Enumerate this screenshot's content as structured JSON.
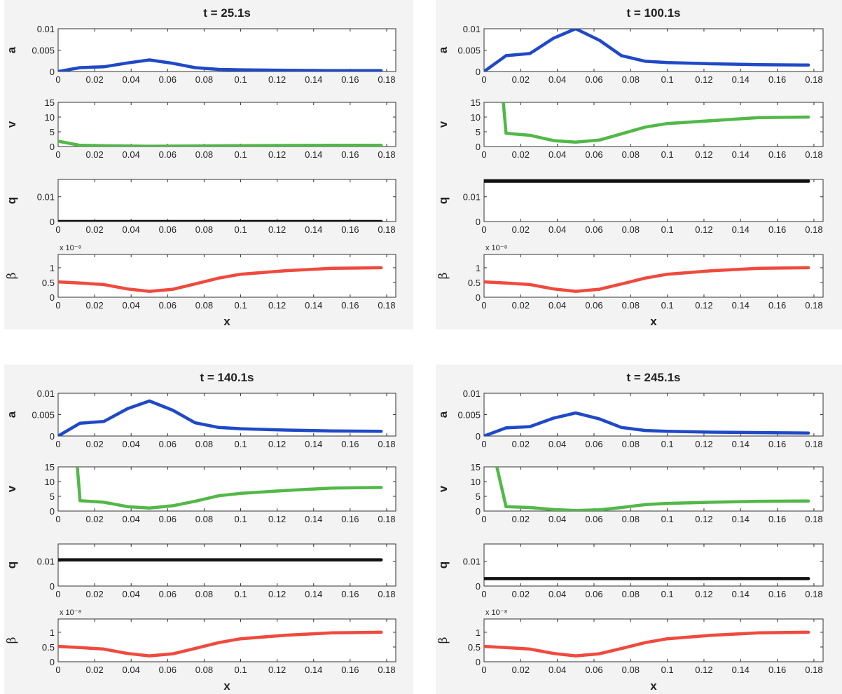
{
  "chart_data": [
    {
      "type": "line",
      "title": "t = 25.1s",
      "xlabel": "x",
      "x_ticks": [
        "0",
        "0.02",
        "0.04",
        "0.06",
        "0.08",
        "0.1",
        "0.12",
        "0.14",
        "0.16",
        "0.18"
      ],
      "subplots": [
        {
          "ylabel": "a",
          "color": "#1f49c7",
          "ylim": [
            0,
            0.01
          ],
          "yticks": [
            "0",
            "0.005",
            "0.01"
          ],
          "yticks_values": [
            0,
            0.005,
            0.01
          ],
          "exponent": "",
          "x": [
            0,
            0.012,
            0.025,
            0.038,
            0.05,
            0.063,
            0.075,
            0.088,
            0.1,
            0.125,
            0.15,
            0.177
          ],
          "y": [
            0,
            0.0009,
            0.0011,
            0.002,
            0.0027,
            0.0019,
            0.0009,
            0.0005,
            0.0004,
            0.0003,
            0.0002,
            0.0002
          ]
        },
        {
          "ylabel": "v",
          "color": "#52b848",
          "ylim": [
            0,
            15
          ],
          "yticks": [
            "0",
            "5",
            "10",
            "15"
          ],
          "yticks_values": [
            0,
            5,
            10,
            15
          ],
          "exponent": "",
          "x": [
            0,
            0.012,
            0.025,
            0.05,
            0.075,
            0.1,
            0.125,
            0.15,
            0.177
          ],
          "y": [
            1.8,
            0.4,
            0.25,
            0.1,
            0.2,
            0.3,
            0.35,
            0.4,
            0.4
          ]
        },
        {
          "ylabel": "q",
          "color": "#111111",
          "ylim": [
            0,
            0.017
          ],
          "yticks": [
            "0",
            "0.01"
          ],
          "yticks_values": [
            0,
            0.01
          ],
          "exponent": "",
          "x": [
            0,
            0.177
          ],
          "y": [
            0,
            0
          ]
        },
        {
          "ylabel": "β",
          "color": "#ef4a3e",
          "ylim": [
            0,
            1.45
          ],
          "yticks": [
            "0",
            "0.5",
            "1"
          ],
          "yticks_values": [
            0,
            0.5,
            1
          ],
          "exponent": "x 10⁻⁸",
          "x": [
            0,
            0.012,
            0.025,
            0.038,
            0.05,
            0.063,
            0.075,
            0.088,
            0.1,
            0.125,
            0.15,
            0.177
          ],
          "y": [
            0.52,
            0.48,
            0.43,
            0.28,
            0.2,
            0.27,
            0.45,
            0.65,
            0.78,
            0.9,
            0.98,
            1.0
          ]
        }
      ]
    },
    {
      "type": "line",
      "title": "t = 100.1s",
      "xlabel": "x",
      "x_ticks": [
        "0",
        "0.02",
        "0.04",
        "0.06",
        "0.08",
        "0.1",
        "0.12",
        "0.14",
        "0.16",
        "0.18"
      ],
      "subplots": [
        {
          "ylabel": "a",
          "color": "#1f49c7",
          "ylim": [
            0,
            0.01
          ],
          "yticks": [
            "0",
            "0.005",
            "0.01"
          ],
          "yticks_values": [
            0,
            0.005,
            0.01
          ],
          "exponent": "",
          "x": [
            0,
            0.012,
            0.025,
            0.038,
            0.05,
            0.063,
            0.075,
            0.088,
            0.1,
            0.125,
            0.15,
            0.177
          ],
          "y": [
            0,
            0.0037,
            0.0042,
            0.0078,
            0.01,
            0.0073,
            0.0037,
            0.0024,
            0.0021,
            0.0018,
            0.0016,
            0.0015
          ]
        },
        {
          "ylabel": "v",
          "color": "#52b848",
          "ylim": [
            0,
            15
          ],
          "yticks": [
            "0",
            "5",
            "10",
            "15"
          ],
          "yticks_values": [
            0,
            5,
            10,
            15
          ],
          "exponent": "",
          "x": [
            0.0105,
            0.012,
            0.025,
            0.038,
            0.05,
            0.063,
            0.075,
            0.088,
            0.1,
            0.125,
            0.15,
            0.177
          ],
          "y": [
            15,
            4.5,
            3.8,
            2.0,
            1.5,
            2.2,
            4.3,
            6.6,
            7.8,
            8.8,
            9.8,
            10.0
          ]
        },
        {
          "ylabel": "q",
          "color": "#111111",
          "ylim": [
            0,
            0.017
          ],
          "yticks": [
            "0",
            "0.01"
          ],
          "yticks_values": [
            0,
            0.01
          ],
          "exponent": "",
          "x": [
            0,
            0.177
          ],
          "y": [
            0.0163,
            0.0163
          ]
        },
        {
          "ylabel": "β",
          "color": "#ef4a3e",
          "ylim": [
            0,
            1.45
          ],
          "yticks": [
            "0",
            "0.5",
            "1"
          ],
          "yticks_values": [
            0,
            0.5,
            1
          ],
          "exponent": "x 10⁻⁸",
          "x": [
            0,
            0.012,
            0.025,
            0.038,
            0.05,
            0.063,
            0.075,
            0.088,
            0.1,
            0.125,
            0.15,
            0.177
          ],
          "y": [
            0.52,
            0.48,
            0.43,
            0.28,
            0.2,
            0.27,
            0.45,
            0.65,
            0.78,
            0.9,
            0.98,
            1.0
          ]
        }
      ]
    },
    {
      "type": "line",
      "title": "t = 140.1s",
      "xlabel": "x",
      "x_ticks": [
        "0",
        "0.02",
        "0.04",
        "0.06",
        "0.08",
        "0.1",
        "0.12",
        "0.14",
        "0.16",
        "0.18"
      ],
      "subplots": [
        {
          "ylabel": "a",
          "color": "#1f49c7",
          "ylim": [
            0,
            0.01
          ],
          "yticks": [
            "0",
            "0.005",
            "0.01"
          ],
          "yticks_values": [
            0,
            0.005,
            0.01
          ],
          "exponent": "",
          "x": [
            0,
            0.012,
            0.025,
            0.038,
            0.05,
            0.063,
            0.075,
            0.088,
            0.1,
            0.125,
            0.15,
            0.177
          ],
          "y": [
            0,
            0.003,
            0.0034,
            0.0064,
            0.0082,
            0.006,
            0.0031,
            0.002,
            0.0017,
            0.0014,
            0.0012,
            0.0011
          ]
        },
        {
          "ylabel": "v",
          "color": "#52b848",
          "ylim": [
            0,
            15
          ],
          "yticks": [
            "0",
            "5",
            "10",
            "15"
          ],
          "yticks_values": [
            0,
            5,
            10,
            15
          ],
          "exponent": "",
          "x": [
            0.0105,
            0.012,
            0.025,
            0.038,
            0.05,
            0.063,
            0.075,
            0.088,
            0.1,
            0.125,
            0.15,
            0.177
          ],
          "y": [
            15,
            3.5,
            3.0,
            1.5,
            1.0,
            1.8,
            3.3,
            5.2,
            6.0,
            7.0,
            7.8,
            8.0
          ]
        },
        {
          "ylabel": "q",
          "color": "#111111",
          "ylim": [
            0,
            0.017
          ],
          "yticks": [
            "0",
            "0.01"
          ],
          "yticks_values": [
            0,
            0.01
          ],
          "exponent": "",
          "x": [
            0,
            0.177
          ],
          "y": [
            0.0106,
            0.0106
          ]
        },
        {
          "ylabel": "β",
          "color": "#ef4a3e",
          "ylim": [
            0,
            1.45
          ],
          "yticks": [
            "0",
            "0.5",
            "1"
          ],
          "yticks_values": [
            0,
            0.5,
            1
          ],
          "exponent": "x 10⁻⁸",
          "x": [
            0,
            0.012,
            0.025,
            0.038,
            0.05,
            0.063,
            0.075,
            0.088,
            0.1,
            0.125,
            0.15,
            0.177
          ],
          "y": [
            0.52,
            0.48,
            0.43,
            0.28,
            0.2,
            0.27,
            0.45,
            0.65,
            0.78,
            0.9,
            0.98,
            1.0
          ]
        }
      ]
    },
    {
      "type": "line",
      "title": "t = 245.1s",
      "xlabel": "x",
      "x_ticks": [
        "0",
        "0.02",
        "0.04",
        "0.06",
        "0.08",
        "0.1",
        "0.12",
        "0.14",
        "0.16",
        "0.18"
      ],
      "subplots": [
        {
          "ylabel": "a",
          "color": "#1f49c7",
          "ylim": [
            0,
            0.01
          ],
          "yticks": [
            "0",
            "0.005",
            "0.01"
          ],
          "yticks_values": [
            0,
            0.005,
            0.01
          ],
          "exponent": "",
          "x": [
            0,
            0.012,
            0.025,
            0.038,
            0.05,
            0.063,
            0.075,
            0.088,
            0.1,
            0.125,
            0.15,
            0.177
          ],
          "y": [
            0,
            0.0019,
            0.0022,
            0.0042,
            0.0054,
            0.004,
            0.002,
            0.0013,
            0.0011,
            0.0009,
            0.0008,
            0.0007
          ]
        },
        {
          "ylabel": "v",
          "color": "#52b848",
          "ylim": [
            0,
            15
          ],
          "yticks": [
            "0",
            "5",
            "10",
            "15"
          ],
          "yticks_values": [
            0,
            5,
            10,
            15
          ],
          "exponent": "",
          "x": [
            0.007,
            0.012,
            0.025,
            0.038,
            0.05,
            0.063,
            0.075,
            0.088,
            0.1,
            0.125,
            0.15,
            0.177
          ],
          "y": [
            15,
            1.5,
            1.2,
            0.5,
            0.2,
            0.4,
            1.2,
            2.2,
            2.6,
            3.0,
            3.3,
            3.4
          ]
        },
        {
          "ylabel": "q",
          "color": "#111111",
          "ylim": [
            0,
            0.017
          ],
          "yticks": [
            "0",
            "0.01"
          ],
          "yticks_values": [
            0,
            0.01
          ],
          "exponent": "",
          "x": [
            0,
            0.177
          ],
          "y": [
            0.003,
            0.003
          ]
        },
        {
          "ylabel": "β",
          "color": "#ef4a3e",
          "ylim": [
            0,
            1.45
          ],
          "yticks": [
            "0",
            "0.5",
            "1"
          ],
          "yticks_values": [
            0,
            0.5,
            1
          ],
          "exponent": "x 10⁻⁸",
          "x": [
            0,
            0.012,
            0.025,
            0.038,
            0.05,
            0.063,
            0.075,
            0.088,
            0.1,
            0.125,
            0.15,
            0.177
          ],
          "y": [
            0.52,
            0.48,
            0.43,
            0.28,
            0.2,
            0.27,
            0.45,
            0.65,
            0.78,
            0.9,
            0.98,
            1.0
          ]
        }
      ]
    }
  ]
}
